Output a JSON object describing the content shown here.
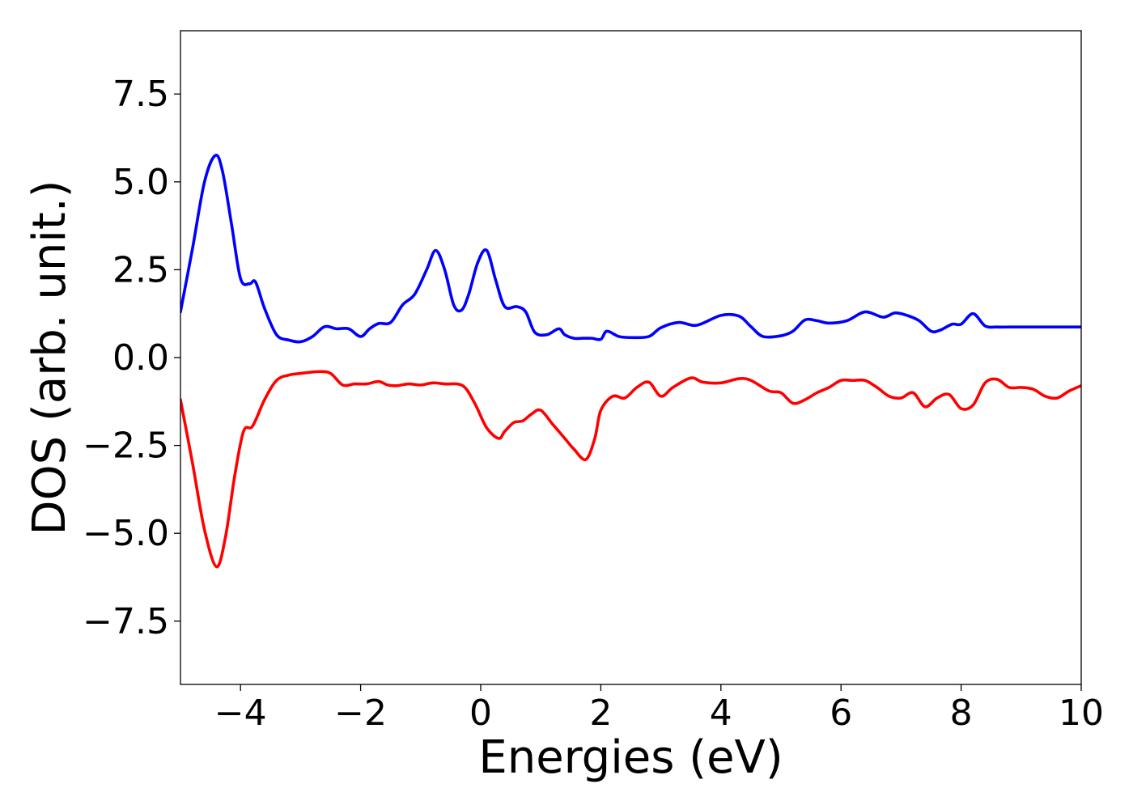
{
  "chart_data": {
    "type": "line",
    "title": "",
    "xlabel": "Energies (eV)",
    "ylabel": "DOS (arb. unit.)",
    "xlim": [
      -5,
      10
    ],
    "ylim": [
      -9.3,
      9.3
    ],
    "xticks": [
      -4,
      -2,
      0,
      2,
      4,
      6,
      8,
      10
    ],
    "xtick_labels": [
      "−4",
      "−2",
      "0",
      "2",
      "4",
      "6",
      "8",
      "10"
    ],
    "yticks": [
      -7.5,
      -5.0,
      -2.5,
      0.0,
      2.5,
      5.0,
      7.5
    ],
    "ytick_labels": [
      "−7.5",
      "−5.0",
      "−2.5",
      "0.0",
      "2.5",
      "5.0",
      "7.5"
    ],
    "grid": false,
    "legend": "none",
    "series": [
      {
        "color": "#0000ff",
        "x": [
          -5.0,
          -4.8,
          -4.6,
          -4.42,
          -4.3,
          -4.15,
          -4.0,
          -3.85,
          -3.75,
          -3.6,
          -3.4,
          -3.2,
          -3.0,
          -2.8,
          -2.6,
          -2.4,
          -2.2,
          -2.0,
          -1.85,
          -1.7,
          -1.5,
          -1.3,
          -1.1,
          -0.9,
          -0.75,
          -0.6,
          -0.45,
          -0.32,
          -0.2,
          -0.05,
          0.1,
          0.25,
          0.4,
          0.6,
          0.75,
          0.9,
          1.1,
          1.3,
          1.4,
          1.55,
          1.7,
          1.85,
          2.0,
          2.1,
          2.3,
          2.5,
          2.8,
          3.0,
          3.3,
          3.6,
          4.0,
          4.3,
          4.5,
          4.7,
          5.0,
          5.2,
          5.4,
          5.6,
          5.8,
          6.1,
          6.4,
          6.7,
          6.9,
          7.1,
          7.3,
          7.5,
          7.65,
          7.85,
          8.0,
          8.2,
          8.4,
          8.6,
          8.8,
          9.0,
          9.2,
          9.35,
          9.5,
          9.7,
          9.85,
          10.0
        ],
        "y": [
          1.3,
          3.1,
          5.0,
          5.75,
          5.3,
          3.8,
          2.25,
          2.1,
          2.15,
          1.4,
          0.65,
          0.5,
          0.45,
          0.6,
          0.88,
          0.82,
          0.82,
          0.6,
          0.82,
          0.97,
          1.0,
          1.5,
          1.8,
          2.5,
          3.05,
          2.5,
          1.5,
          1.35,
          1.8,
          2.7,
          3.05,
          2.2,
          1.45,
          1.45,
          1.3,
          0.72,
          0.65,
          0.82,
          0.65,
          0.55,
          0.55,
          0.55,
          0.52,
          0.75,
          0.6,
          0.57,
          0.6,
          0.85,
          1.0,
          0.92,
          1.2,
          1.18,
          0.88,
          0.6,
          0.62,
          0.75,
          1.07,
          1.05,
          0.98,
          1.05,
          1.3,
          1.15,
          1.27,
          1.2,
          1.05,
          0.75,
          0.78,
          0.95,
          0.95,
          1.25,
          0.9,
          0.87,
          0.87,
          0.87,
          0.87,
          0.87,
          0.87,
          0.87,
          0.87,
          0.87
        ]
      },
      {
        "color": "#ff0000",
        "x": [
          -5.0,
          -4.8,
          -4.6,
          -4.4,
          -4.25,
          -4.1,
          -3.95,
          -3.8,
          -3.6,
          -3.4,
          -3.2,
          -3.0,
          -2.7,
          -2.5,
          -2.3,
          -2.1,
          -1.9,
          -1.7,
          -1.55,
          -1.4,
          -1.2,
          -1.0,
          -0.8,
          -0.6,
          -0.3,
          -0.1,
          0.1,
          0.3,
          0.4,
          0.55,
          0.7,
          0.85,
          1.0,
          1.2,
          1.4,
          1.55,
          1.75,
          1.9,
          2.0,
          2.2,
          2.4,
          2.6,
          2.8,
          3.0,
          3.2,
          3.5,
          3.7,
          4.0,
          4.3,
          4.5,
          4.8,
          5.0,
          5.2,
          5.4,
          5.6,
          5.8,
          6.0,
          6.2,
          6.4,
          6.6,
          6.8,
          7.0,
          7.2,
          7.4,
          7.6,
          7.8,
          8.0,
          8.2,
          8.4,
          8.6,
          8.8,
          9.0,
          9.2,
          9.4,
          9.6,
          9.8,
          10.0
        ],
        "y": [
          -1.2,
          -3.0,
          -4.9,
          -5.95,
          -5.1,
          -3.4,
          -2.1,
          -1.95,
          -1.2,
          -0.65,
          -0.5,
          -0.45,
          -0.4,
          -0.45,
          -0.78,
          -0.75,
          -0.75,
          -0.68,
          -0.78,
          -0.8,
          -0.75,
          -0.78,
          -0.72,
          -0.75,
          -0.8,
          -1.3,
          -2.0,
          -2.3,
          -2.1,
          -1.85,
          -1.8,
          -1.6,
          -1.5,
          -1.9,
          -2.3,
          -2.6,
          -2.9,
          -2.3,
          -1.5,
          -1.1,
          -1.15,
          -0.85,
          -0.7,
          -1.1,
          -0.85,
          -0.58,
          -0.7,
          -0.72,
          -0.6,
          -0.65,
          -0.95,
          -1.0,
          -1.3,
          -1.2,
          -1.0,
          -0.85,
          -0.65,
          -0.65,
          -0.65,
          -0.85,
          -1.1,
          -1.15,
          -1.0,
          -1.4,
          -1.15,
          -1.05,
          -1.45,
          -1.35,
          -0.72,
          -0.62,
          -0.85,
          -0.85,
          -0.9,
          -1.1,
          -1.15,
          -0.95,
          -0.8
        ]
      }
    ]
  }
}
